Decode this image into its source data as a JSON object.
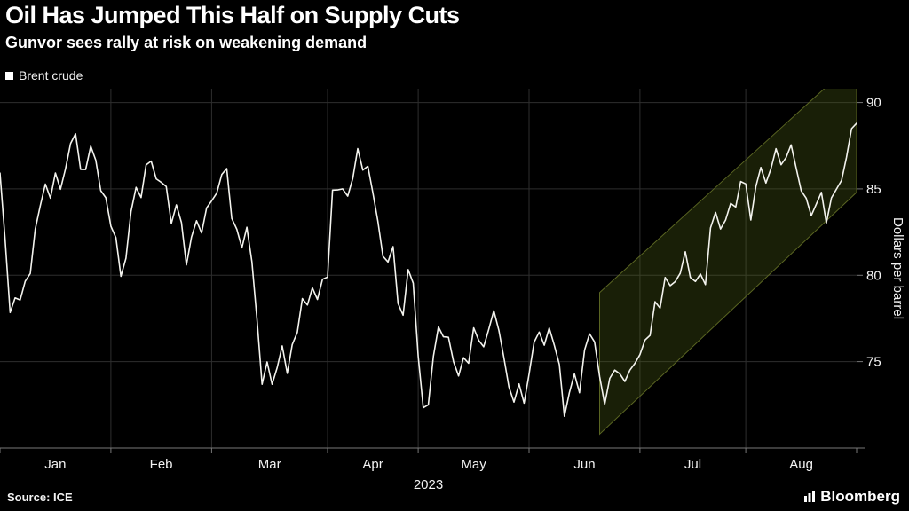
{
  "header": {
    "title": "Oil Has Jumped This Half on Supply Cuts",
    "subtitle": "Gunvor sees rally at risk on weakening demand"
  },
  "legend": {
    "label": "Brent crude",
    "swatch_color": "#ffffff"
  },
  "footer": {
    "source": "Source: ICE",
    "brand": "Bloomberg"
  },
  "chart_data": {
    "type": "line",
    "title": "Oil Has Jumped This Half on Supply Cuts",
    "subtitle": "Gunvor sees rally at risk on weakening demand",
    "ylabel": "Dollars per barrel",
    "xlabel_year": "2023",
    "yticks": [
      75,
      80,
      85,
      90
    ],
    "ylim": [
      70,
      90.8
    ],
    "grid": true,
    "grid_color": "#2e2e2e",
    "axis_color": "#777777",
    "tick_label_color": "#f2f2f2",
    "background_color": "#000000",
    "legend_position": "top-left",
    "x_months": [
      {
        "label": "Jan",
        "start": 0
      },
      {
        "label": "Feb",
        "start": 22
      },
      {
        "label": "Mar",
        "start": 42
      },
      {
        "label": "Apr",
        "start": 65
      },
      {
        "label": "May",
        "start": 83
      },
      {
        "label": "Jun",
        "start": 105
      },
      {
        "label": "Jul",
        "start": 127
      },
      {
        "label": "Aug",
        "start": 148
      }
    ],
    "series": [
      {
        "name": "Brent crude",
        "color": "#f3f3ee",
        "values": [
          85.91,
          82.1,
          77.84,
          78.69,
          78.57,
          79.65,
          80.1,
          82.67,
          84.03,
          85.28,
          84.46,
          85.92,
          84.98,
          86.16,
          87.63,
          88.19,
          86.13,
          86.12,
          87.47,
          86.66,
          84.9,
          84.49,
          82.84,
          82.17,
          79.94,
          80.99,
          83.69,
          85.09,
          84.5,
          86.39,
          86.61,
          85.58,
          85.38,
          85.14,
          83.0,
          84.07,
          83.05,
          80.6,
          82.21,
          83.16,
          82.45,
          83.89,
          84.31,
          84.75,
          85.83,
          86.18,
          83.29,
          82.66,
          81.59,
          82.78,
          80.77,
          77.45,
          73.69,
          74.98,
          73.69,
          74.65,
          75.91,
          74.32,
          75.99,
          76.69,
          78.65,
          78.28,
          79.27,
          78.6,
          79.77,
          79.89,
          84.93,
          84.94,
          85.0,
          84.58,
          85.61,
          87.33,
          86.09,
          86.31,
          84.76,
          83.12,
          81.1,
          80.77,
          81.66,
          78.37,
          77.69,
          80.33,
          79.54,
          75.32,
          72.33,
          72.5,
          75.3,
          77.01,
          76.44,
          76.41,
          75.0,
          74.17,
          75.23,
          74.91,
          76.96,
          76.23,
          75.86,
          76.87,
          77.95,
          76.81,
          75.24,
          73.54,
          72.66,
          73.71,
          72.6,
          74.28,
          76.13,
          76.71,
          75.95,
          76.95,
          75.96,
          74.84,
          71.84,
          73.2,
          74.29,
          73.2,
          75.67,
          76.61,
          76.14,
          74.14,
          72.53,
          74.03,
          74.51,
          74.3,
          73.85,
          74.51,
          74.9,
          75.41,
          76.25,
          76.52,
          78.47,
          78.1,
          79.87,
          79.4,
          79.63,
          80.11,
          81.36,
          79.87,
          79.64,
          80.07,
          79.46,
          82.74,
          83.64,
          82.68,
          83.2,
          84.16,
          83.95,
          85.43,
          85.29,
          83.2,
          85.14,
          86.24,
          85.34,
          86.17,
          87.33,
          86.4,
          86.81,
          87.55,
          86.21,
          84.89,
          84.46,
          83.45,
          84.12,
          84.8,
          83.03,
          84.48,
          84.99,
          85.49,
          86.83,
          88.49,
          88.8
        ]
      }
    ],
    "annotations": [
      {
        "name": "trend-channel",
        "type": "channel",
        "x1": 119,
        "low1": 70.8,
        "high1": 79.0,
        "x2": 170,
        "low2": 84.8,
        "high2": 92.5,
        "fill": "rgba(84,104,22,0.30)",
        "stroke": "#5a6522"
      }
    ]
  }
}
